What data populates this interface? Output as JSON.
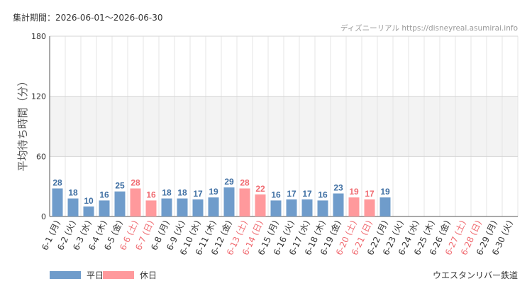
{
  "period_label": "集計期間：2026-06-01～2026-06-30",
  "credit": "ディズニーリアル https://disneyreal.asumirai.info",
  "line_name": "ウエスタンリバー鉄道",
  "legend": {
    "weekday": "平日",
    "holiday": "休日"
  },
  "colors": {
    "weekday_bar": "#6f9ccb",
    "weekday_label": "#3f6fa3",
    "holiday_bar": "#ff999c",
    "holiday_label": "#f06a70",
    "band": "#f3f3f3",
    "grid": "#e4e4e4",
    "axis": "#555555"
  },
  "chart_data": {
    "type": "bar",
    "ylabel": "平均待ち時間（分）",
    "ylim": [
      0,
      180
    ],
    "yticks": [
      0,
      60,
      120,
      180
    ],
    "shaded_band": [
      60,
      120
    ],
    "categories": [
      "6-1 (月)",
      "6-2 (火)",
      "6-3 (水)",
      "6-4 (木)",
      "6-5 (金)",
      "6-6 (土)",
      "6-7 (日)",
      "6-8 (月)",
      "6-9 (火)",
      "6-10 (水)",
      "6-11 (木)",
      "6-12 (金)",
      "6-13 (土)",
      "6-14 (日)",
      "6-15 (月)",
      "6-16 (火)",
      "6-17 (水)",
      "6-18 (木)",
      "6-19 (金)",
      "6-20 (土)",
      "6-21 (日)",
      "6-22 (月)",
      "6-23 (火)",
      "6-24 (水)",
      "6-25 (木)",
      "6-26 (金)",
      "6-27 (土)",
      "6-28 (日)",
      "6-29 (月)",
      "6-30 (火)"
    ],
    "values": [
      28,
      18,
      10,
      16,
      25,
      28,
      16,
      18,
      18,
      17,
      19,
      29,
      28,
      22,
      16,
      17,
      17,
      16,
      23,
      19,
      17,
      19,
      null,
      null,
      null,
      null,
      null,
      null,
      null,
      null
    ],
    "holiday": [
      false,
      false,
      false,
      false,
      false,
      true,
      true,
      false,
      false,
      false,
      false,
      false,
      true,
      true,
      false,
      false,
      false,
      false,
      false,
      true,
      true,
      false,
      false,
      false,
      false,
      false,
      true,
      true,
      false,
      false
    ]
  }
}
